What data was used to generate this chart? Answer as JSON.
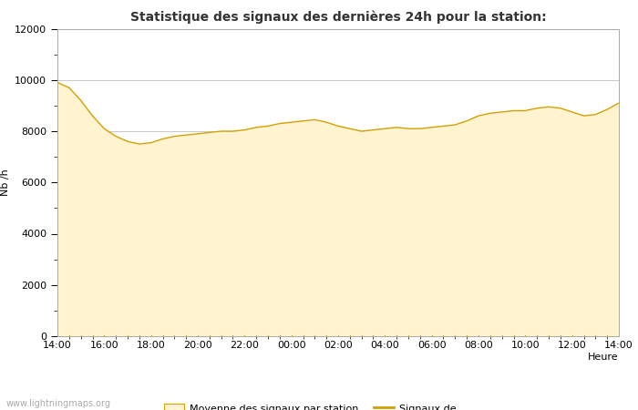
{
  "title": "Statistique des signaux des dernières 24h pour la station:",
  "xlabel": "Heure",
  "ylabel": "Nb /h",
  "xlim": [
    0,
    24
  ],
  "ylim": [
    0,
    12000
  ],
  "yticks": [
    0,
    2000,
    4000,
    6000,
    8000,
    10000,
    12000
  ],
  "yticks_minor": [
    1000,
    3000,
    5000,
    7000,
    9000,
    11000
  ],
  "xtick_labels": [
    "14:00",
    "16:00",
    "18:00",
    "20:00",
    "22:00",
    "00:00",
    "02:00",
    "04:00",
    "06:00",
    "08:00",
    "10:00",
    "12:00",
    "14:00"
  ],
  "fill_color": "#FFF3D0",
  "line_color": "#D4A000",
  "background_color": "#FFFFFF",
  "plot_bg_color": "#FFFFFF",
  "grid_color": "#C8C8C8",
  "watermark": "www.lightningmaps.org",
  "legend_patch_label": "Moyenne des signaux par station",
  "legend_line_label": "Signaux de",
  "x": [
    0,
    0.5,
    1.0,
    1.5,
    2.0,
    2.5,
    3.0,
    3.5,
    4.0,
    4.5,
    5.0,
    5.5,
    6.0,
    6.5,
    7.0,
    7.5,
    8.0,
    8.5,
    9.0,
    9.5,
    10.0,
    10.5,
    11.0,
    11.5,
    12.0,
    12.5,
    13.0,
    13.5,
    14.0,
    14.5,
    15.0,
    15.5,
    16.0,
    16.5,
    17.0,
    17.5,
    18.0,
    18.5,
    19.0,
    19.5,
    20.0,
    20.5,
    21.0,
    21.5,
    22.0,
    22.5,
    23.0,
    23.5,
    24.0
  ],
  "y": [
    9900,
    9700,
    9200,
    8600,
    8100,
    7800,
    7600,
    7500,
    7550,
    7700,
    7800,
    7850,
    7900,
    7950,
    8000,
    8000,
    8050,
    8150,
    8200,
    8300,
    8350,
    8400,
    8450,
    8350,
    8200,
    8100,
    8000,
    8050,
    8100,
    8150,
    8100,
    8100,
    8150,
    8200,
    8250,
    8400,
    8600,
    8700,
    8750,
    8800,
    8800,
    8900,
    8950,
    8900,
    8750,
    8600,
    8650,
    8850,
    9100
  ],
  "title_fontsize": 10,
  "tick_fontsize": 8,
  "label_fontsize": 8,
  "watermark_fontsize": 7
}
